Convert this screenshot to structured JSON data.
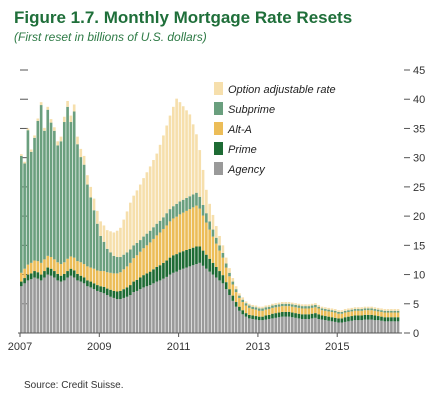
{
  "title": "Figure 1.7. Monthly Mortgage Rate Resets",
  "subtitle": "(First reset in billions of U.S. dollars)",
  "source": "Source: Credit Suisse.",
  "chart_data": {
    "type": "bar",
    "stacked": true,
    "ylim": [
      0,
      45
    ],
    "yticks": [
      "0",
      "5",
      "10",
      "15",
      "20",
      "25",
      "30",
      "35",
      "40",
      "45"
    ],
    "xticks": [
      {
        "label": "2007",
        "month_index": 0
      },
      {
        "label": "2009",
        "month_index": 24
      },
      {
        "label": "2011",
        "month_index": 48
      },
      {
        "label": "2013",
        "month_index": 72
      },
      {
        "label": "2015",
        "month_index": 96
      }
    ],
    "x_start": "2007-01",
    "x_end": "2016-07",
    "legend_position": "top-right",
    "grid": false,
    "series": [
      {
        "name": "Agency",
        "color": "#9a9a9a",
        "values": [
          8,
          8.5,
          9,
          9.2,
          9.5,
          9.3,
          9,
          9.5,
          10,
          9.8,
          9.5,
          9,
          8.8,
          9,
          9.5,
          9.8,
          9.5,
          9,
          8.8,
          8.5,
          8,
          7.8,
          7.5,
          7.2,
          7,
          6.8,
          6.5,
          6.2,
          6,
          5.8,
          5.8,
          6,
          6.2,
          6.5,
          7,
          7.2,
          7.5,
          7.8,
          8,
          8.2,
          8.5,
          8.8,
          9,
          9.3,
          9.6,
          10,
          10.3,
          10.5,
          10.8,
          11,
          11.2,
          11.4,
          11.6,
          11.8,
          12,
          11.5,
          11,
          10.5,
          10,
          9.5,
          9,
          8.5,
          7.5,
          6.5,
          5.5,
          4.5,
          3.8,
          3.2,
          2.8,
          2.5,
          2.4,
          2.3,
          2.2,
          2.2,
          2.3,
          2.4,
          2.5,
          2.6,
          2.7,
          2.8,
          2.8,
          2.8,
          2.7,
          2.6,
          2.5,
          2.4,
          2.4,
          2.4,
          2.5,
          2.6,
          2.4,
          2.3,
          2.2,
          2.1,
          2,
          1.9,
          1.8,
          1.8,
          1.9,
          2,
          2.1,
          2.2,
          2.2,
          2.2,
          2.3,
          2.3,
          2.3,
          2.2,
          2.2,
          2.1,
          2,
          2,
          2,
          2,
          2
        ]
      },
      {
        "name": "Prime",
        "color": "#1e6b34",
        "values": [
          0.8,
          0.9,
          1,
          1,
          1.1,
          1.1,
          1,
          1.1,
          1.2,
          1.2,
          1.1,
          1.1,
          1,
          1.1,
          1.1,
          1.2,
          1.2,
          1.1,
          1,
          1,
          1,
          1,
          1,
          1,
          1,
          1.1,
          1.1,
          1.2,
          1.2,
          1.3,
          1.4,
          1.5,
          1.6,
          1.7,
          1.8,
          1.9,
          2,
          2.1,
          2.2,
          2.3,
          2.4,
          2.5,
          2.6,
          2.7,
          2.8,
          2.9,
          3,
          3,
          3,
          3,
          3,
          3,
          3,
          3,
          2.8,
          2.6,
          2.4,
          2.2,
          2,
          1.8,
          1.6,
          1.4,
          1.2,
          1,
          0.9,
          0.8,
          0.7,
          0.7,
          0.6,
          0.6,
          0.6,
          0.6,
          0.6,
          0.6,
          0.7,
          0.7,
          0.8,
          0.8,
          0.8,
          0.8,
          0.8,
          0.8,
          0.8,
          0.8,
          0.8,
          0.8,
          0.8,
          0.8,
          0.8,
          0.8,
          0.8,
          0.7,
          0.7,
          0.7,
          0.7,
          0.7,
          0.7,
          0.7,
          0.8,
          0.8,
          0.8,
          0.8,
          0.8,
          0.8,
          0.8,
          0.8,
          0.8,
          0.8,
          0.7,
          0.7,
          0.7,
          0.7,
          0.7,
          0.7,
          0.7
        ]
      },
      {
        "name": "Alt-A",
        "color": "#ecbd58",
        "values": [
          1.5,
          1.6,
          1.7,
          1.8,
          1.8,
          1.9,
          2,
          2,
          2,
          2,
          2,
          2,
          2,
          2,
          2.1,
          2.1,
          2.2,
          2.2,
          2.3,
          2.3,
          2.4,
          2.4,
          2.5,
          2.5,
          2.6,
          2.7,
          2.8,
          2.9,
          3,
          3.1,
          3.2,
          3.4,
          3.6,
          3.8,
          4,
          4.2,
          4.4,
          4.6,
          4.8,
          5,
          5.2,
          5.4,
          5.6,
          5.8,
          6,
          6.2,
          6.3,
          6.4,
          6.5,
          6.6,
          6.7,
          6.8,
          6.9,
          7,
          6.5,
          6,
          5.5,
          5,
          4.5,
          4,
          3.5,
          3,
          2.5,
          2.2,
          1.9,
          1.7,
          1.5,
          1.4,
          1.3,
          1.2,
          1.1,
          1.1,
          1,
          1,
          1,
          1,
          1,
          1,
          1,
          1,
          1,
          1,
          1,
          1,
          1,
          1,
          1,
          1,
          1,
          1,
          1,
          0.9,
          0.9,
          0.9,
          0.9,
          0.9,
          0.8,
          0.8,
          0.8,
          0.8,
          0.8,
          0.8,
          0.8,
          0.8,
          0.8,
          0.8,
          0.8,
          0.8,
          0.8,
          0.8,
          0.8,
          0.8,
          0.8,
          0.8,
          0.8
        ]
      },
      {
        "name": "Subprime",
        "color": "#6a9f7e",
        "values": [
          20,
          18,
          23,
          19,
          21,
          24,
          27,
          22,
          25,
          23,
          22,
          20,
          21,
          24,
          26,
          23,
          25,
          20,
          18,
          17,
          14,
          12,
          10,
          8,
          6,
          5,
          4,
          3.5,
          3,
          2.8,
          2.6,
          2.5,
          2.4,
          2.3,
          2.2,
          2.1,
          2,
          2,
          2,
          2,
          2,
          2,
          2,
          2,
          2.1,
          2.1,
          2.1,
          2.2,
          2.2,
          2.2,
          2.2,
          2.2,
          2.2,
          2.2,
          2,
          1.8,
          1.6,
          1.4,
          1.2,
          1,
          0.9,
          0.8,
          0.7,
          0.6,
          0.5,
          0.5,
          0.4,
          0.4,
          0.4,
          0.4,
          0.4,
          0.4,
          0.4,
          0.4,
          0.4,
          0.4,
          0.4,
          0.4,
          0.4,
          0.4,
          0.4,
          0.4,
          0.4,
          0.4,
          0.4,
          0.4,
          0.4,
          0.4,
          0.4,
          0.4,
          0.3,
          0.3,
          0.3,
          0.3,
          0.3,
          0.3,
          0.3,
          0.3,
          0.3,
          0.3,
          0.3,
          0.3,
          0.3,
          0.3,
          0.3,
          0.3,
          0.3,
          0.3,
          0.3,
          0.3,
          0.3,
          0.3,
          0.3,
          0.3,
          0.3
        ]
      },
      {
        "name": "Option adjustable rate",
        "color": "#f6dfac",
        "values": [
          0.3,
          0.3,
          0.3,
          0.4,
          0.4,
          0.4,
          0.5,
          0.5,
          0.5,
          0.6,
          0.6,
          0.7,
          0.8,
          0.9,
          1,
          1.1,
          1.2,
          1.3,
          1.4,
          1.5,
          1.6,
          1.8,
          2,
          2.2,
          2.5,
          2.8,
          3.2,
          3.6,
          4,
          4.5,
          5,
          6,
          7,
          8,
          8.5,
          9,
          9.5,
          10,
          10.5,
          11,
          11.5,
          12,
          13,
          14,
          15,
          16,
          17,
          18,
          17,
          16,
          15,
          14,
          12,
          10,
          8,
          6,
          4,
          3,
          2.5,
          2,
          1.6,
          1.3,
          1,
          0.8,
          0.6,
          0.5,
          0.4,
          0.4,
          0.3,
          0.3,
          0.3,
          0.3,
          0.3,
          0.3,
          0.3,
          0.3,
          0.3,
          0.3,
          0.3,
          0.3,
          0.3,
          0.3,
          0.3,
          0.3,
          0.3,
          0.3,
          0.3,
          0.3,
          0.3,
          0.3,
          0.3,
          0.3,
          0.3,
          0.3,
          0.3,
          0.3,
          0.3,
          0.3,
          0.3,
          0.3,
          0.3,
          0.3,
          0.3,
          0.3,
          0.3,
          0.3,
          0.3,
          0.3,
          0.3,
          0.3,
          0.3,
          0.3,
          0.3,
          0.3,
          0.3
        ]
      }
    ]
  }
}
